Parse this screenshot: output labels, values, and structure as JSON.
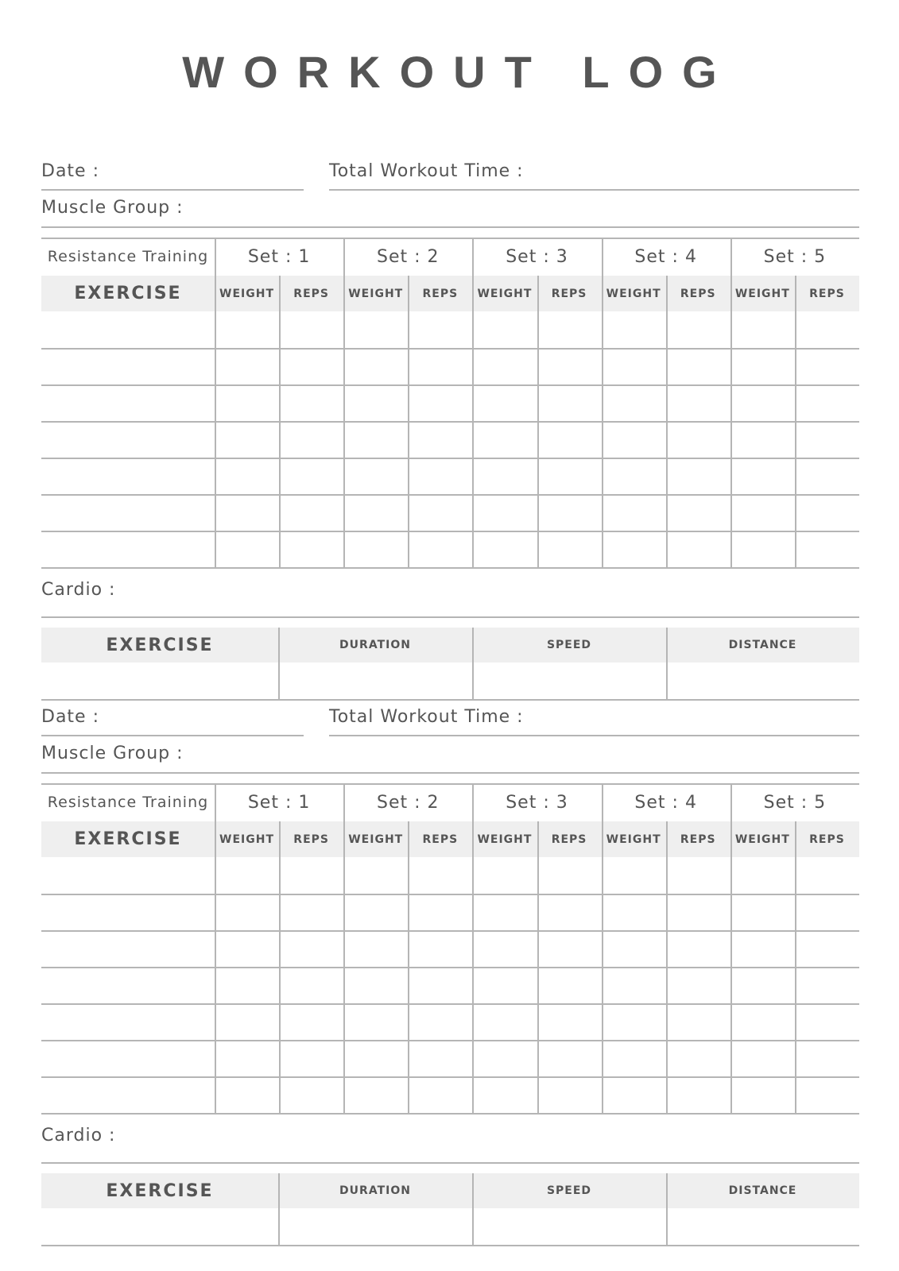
{
  "title": "WORKOUT LOG",
  "logs": [
    {
      "date_label": "Date :",
      "total_time_label": "Total Workout Time :",
      "muscle_group_label": "Muscle Group :",
      "resistance_label": "Resistance Training",
      "sets": [
        "Set : 1",
        "Set : 2",
        "Set : 3",
        "Set : 4",
        "Set : 5"
      ],
      "exercise_header": "EXERCISE",
      "weight_label": "WEIGHT",
      "reps_label": "REPS",
      "cardio_label": "Cardio :",
      "cardio_headers": [
        "EXERCISE",
        "DURATION",
        "SPEED",
        "DISTANCE"
      ]
    },
    {
      "date_label": "Date :",
      "total_time_label": "Total Workout Time :",
      "muscle_group_label": "Muscle Group :",
      "resistance_label": "Resistance Training",
      "sets": [
        "Set : 1",
        "Set : 2",
        "Set : 3",
        "Set : 4",
        "Set : 5"
      ],
      "exercise_header": "EXERCISE",
      "weight_label": "WEIGHT",
      "reps_label": "REPS",
      "cardio_label": "Cardio :",
      "cardio_headers": [
        "EXERCISE",
        "DURATION",
        "SPEED",
        "DISTANCE"
      ]
    }
  ],
  "colors": {
    "text": "#555555",
    "rule": "#b5b5b5",
    "header_fill": "#efefef"
  }
}
